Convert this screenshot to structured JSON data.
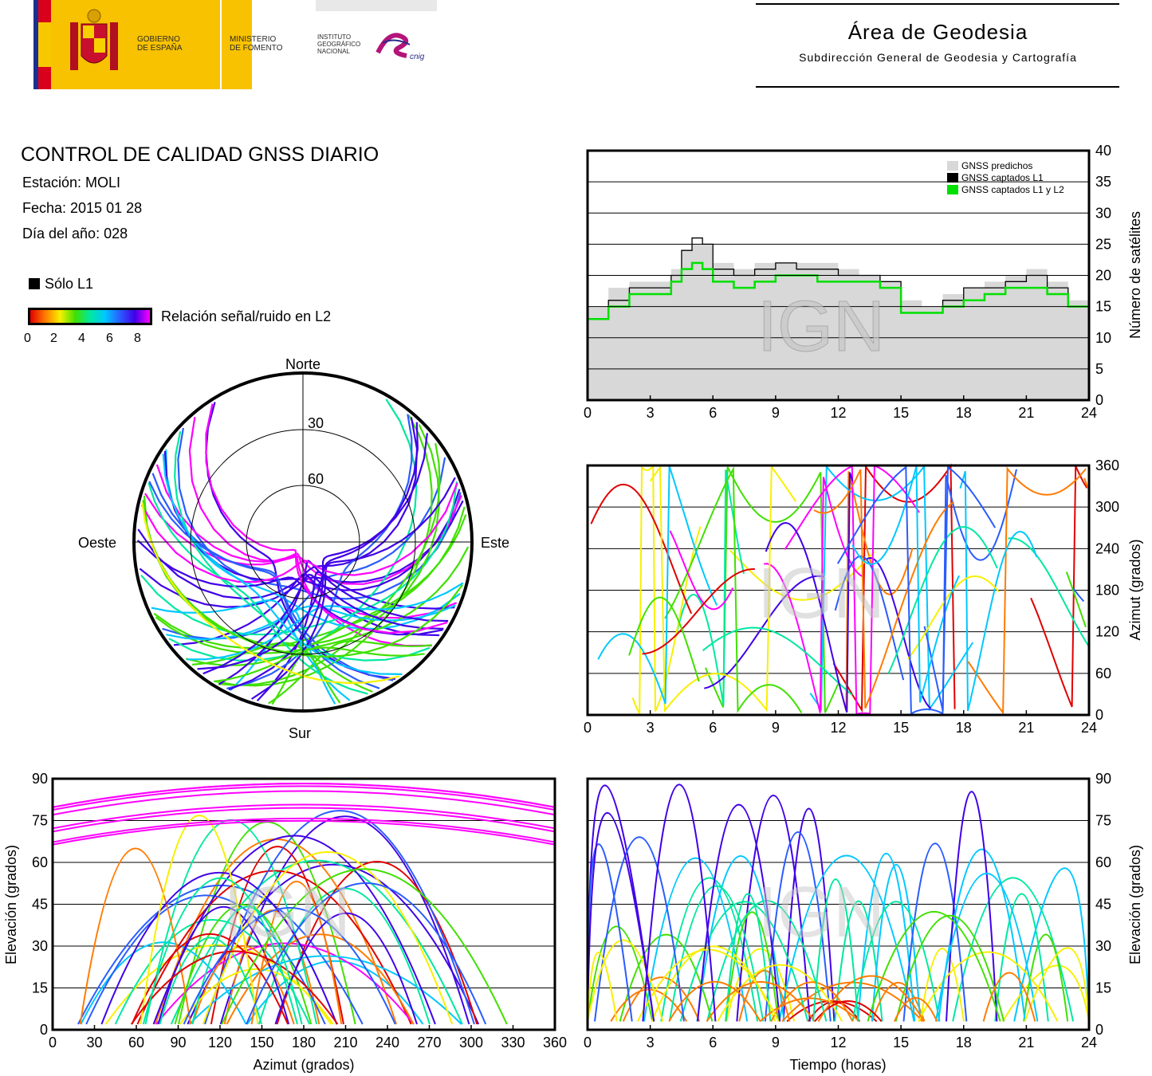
{
  "header": {
    "logos": {
      "gobierno": "GOBIERNO\nDE ESPAÑA",
      "ministerio": "MINISTERIO\nDE FOMENTO",
      "instituto": "INSTITUTO\nGEOGRÁFICO\nNACIONAL",
      "cnig": "cnig"
    },
    "area_title": "Área de Geodesia",
    "area_subtitle": "Subdirección General de Geodesia y Cartografía"
  },
  "report": {
    "title": "CONTROL DE CALIDAD GNSS DIARIO",
    "station": "Estación: MOLI",
    "date": "Fecha: 2015 01 28",
    "doy": "Día del año: 028"
  },
  "legend": {
    "l1_only": "Sólo L1",
    "snr_label": "Relación señal/ruido en L2",
    "snr_ticks": [
      "0",
      "2",
      "4",
      "6",
      "8"
    ]
  },
  "watermark": "IGN",
  "colors": {
    "predicted": "#d8d8d8",
    "l1": "#000000",
    "l1l2": "#00e000",
    "snr_scale": [
      "#e00000",
      "#ff7b00",
      "#f7f000",
      "#40e000",
      "#00e8a0",
      "#00c8ff",
      "#2a5cff",
      "#4000e8",
      "#ff00ff"
    ]
  },
  "chart_data": [
    {
      "id": "polar",
      "type": "scatter",
      "title": "",
      "directions": {
        "north": "Norte",
        "south": "Sur",
        "east": "Este",
        "west": "Oeste"
      },
      "elevation_rings": [
        "30",
        "60"
      ],
      "description_series": "satellite sky tracks colored by L2 SNR"
    },
    {
      "id": "satellites",
      "type": "area",
      "ylabel": "Número de satélites",
      "xlim": [
        0,
        24
      ],
      "ylim": [
        0,
        40
      ],
      "x_ticks": [
        "0",
        "3",
        "6",
        "9",
        "12",
        "15",
        "18",
        "21",
        "24"
      ],
      "y_ticks": [
        "0",
        "5",
        "10",
        "15",
        "20",
        "25",
        "30",
        "35",
        "40"
      ],
      "legend": [
        "GNSS predichos",
        "GNSS captados L1",
        "GNSS captados L1 y L2"
      ],
      "x": [
        0,
        1,
        2,
        3,
        4,
        4.5,
        5,
        5.5,
        6,
        7,
        8,
        9,
        10,
        11,
        12,
        13,
        14,
        15,
        16,
        17,
        18,
        19,
        20,
        21,
        22,
        23,
        24
      ],
      "series": [
        {
          "name": "GNSS predichos",
          "values": [
            15,
            18,
            19,
            19,
            21,
            24,
            25,
            25,
            22,
            21,
            22,
            22,
            22,
            22,
            21,
            20,
            19,
            16,
            15,
            17,
            18,
            19,
            20,
            21,
            19,
            16,
            15
          ]
        },
        {
          "name": "GNSS captados L1",
          "values": [
            13,
            16,
            18,
            18,
            20,
            24,
            26,
            25,
            21,
            20,
            21,
            22,
            21,
            21,
            20,
            20,
            19,
            14,
            14,
            16,
            18,
            18,
            19,
            20,
            18,
            15,
            14
          ]
        },
        {
          "name": "GNSS captados L1 y L2",
          "values": [
            13,
            15,
            17,
            17,
            19,
            21,
            22,
            21,
            19,
            18,
            19,
            20,
            20,
            19,
            19,
            19,
            18,
            14,
            14,
            15,
            16,
            17,
            18,
            18,
            17,
            15,
            14
          ]
        }
      ]
    },
    {
      "id": "azimuth_time",
      "type": "scatter",
      "ylabel": "Azimut (grados)",
      "xlim": [
        0,
        24
      ],
      "ylim": [
        0,
        360
      ],
      "x_ticks": [
        "0",
        "3",
        "6",
        "9",
        "12",
        "15",
        "18",
        "21",
        "24"
      ],
      "y_ticks": [
        "0",
        "60",
        "120",
        "180",
        "240",
        "300",
        "360"
      ]
    },
    {
      "id": "elev_azimuth",
      "type": "scatter",
      "xlabel": "Azimut (grados)",
      "ylabel": "Elevación (grados)",
      "xlim": [
        0,
        360
      ],
      "ylim": [
        0,
        90
      ],
      "x_ticks": [
        "0",
        "30",
        "60",
        "90",
        "120",
        "150",
        "180",
        "210",
        "240",
        "270",
        "300",
        "330",
        "360"
      ],
      "y_ticks": [
        "0",
        "15",
        "30",
        "45",
        "60",
        "75",
        "90"
      ]
    },
    {
      "id": "elev_time",
      "type": "scatter",
      "xlabel": "Tiempo (horas)",
      "ylabel": "Elevación (grados)",
      "xlim": [
        0,
        24
      ],
      "ylim": [
        0,
        90
      ],
      "x_ticks": [
        "0",
        "3",
        "6",
        "9",
        "12",
        "15",
        "18",
        "21",
        "24"
      ],
      "y_ticks": [
        "0",
        "15",
        "30",
        "45",
        "60",
        "75",
        "90"
      ]
    }
  ]
}
